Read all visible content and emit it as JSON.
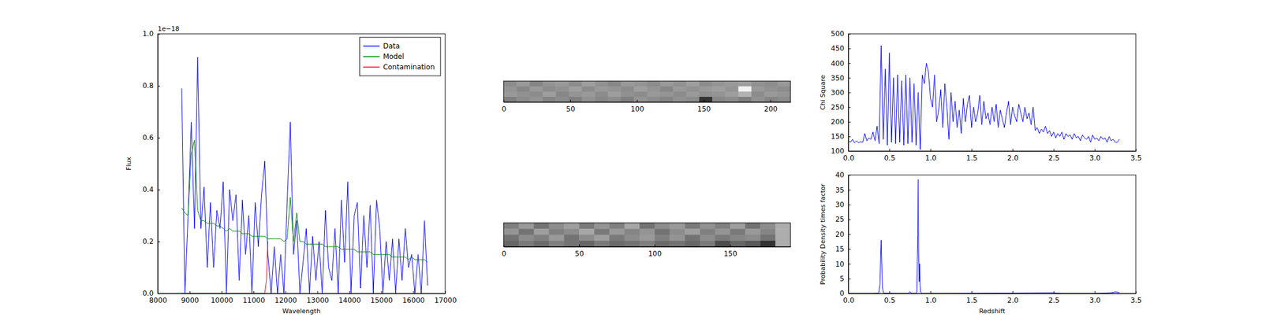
{
  "chart_data": [
    {
      "type": "line",
      "x_label": "Wavelength",
      "y_label": "Flux",
      "y_offset_text": "1e−18",
      "xlim": [
        8000,
        17000
      ],
      "ylim": [
        0,
        1.0
      ],
      "xticks": [
        8000,
        9000,
        10000,
        11000,
        12000,
        13000,
        14000,
        15000,
        16000,
        17000
      ],
      "yticks": [
        {
          "value": 0,
          "label": "0.0"
        },
        {
          "value": 0.2,
          "label": "0.2"
        },
        {
          "value": 0.4,
          "label": "0.4"
        },
        {
          "value": 0.6,
          "label": "0.6"
        },
        {
          "value": 0.8,
          "label": "0.8"
        },
        {
          "value": 1.0,
          "label": "1.0"
        }
      ],
      "legend": "upper right",
      "series": [
        {
          "name": "Data",
          "color": "#0000ff",
          "x": [
            8750,
            8850,
            8950,
            9050,
            9150,
            9250,
            9350,
            9450,
            9550,
            9650,
            9750,
            9850,
            9950,
            10050,
            10150,
            10250,
            10350,
            10450,
            10550,
            10650,
            10750,
            10850,
            10950,
            11050,
            11150,
            11250,
            11350,
            11450,
            11550,
            11650,
            11750,
            11850,
            11950,
            12050,
            12150,
            12250,
            12350,
            12450,
            12550,
            12650,
            12750,
            12850,
            12950,
            13050,
            13150,
            13250,
            13350,
            13450,
            13550,
            13650,
            13750,
            13850,
            13950,
            14050,
            14150,
            14250,
            14350,
            14450,
            14550,
            14650,
            14750,
            14850,
            14950,
            15050,
            15150,
            15250,
            15350,
            15450,
            15550,
            15650,
            15750,
            15850,
            15950,
            16050,
            16150,
            16250,
            16350,
            16450
          ],
          "values": [
            0.79,
            0.0,
            0.3,
            0.66,
            0.25,
            0.91,
            0.25,
            0.41,
            0.1,
            0.35,
            0.1,
            0.32,
            0.25,
            0.43,
            0.0,
            0.4,
            0.28,
            0.38,
            0.05,
            0.36,
            0.15,
            0.3,
            0.0,
            0.35,
            0.18,
            0.38,
            0.51,
            0.15,
            0.0,
            0.18,
            0.0,
            0.15,
            0.0,
            0.35,
            0.66,
            0.15,
            0.28,
            0.0,
            0.12,
            0.25,
            0.0,
            0.22,
            0.05,
            0.2,
            0.0,
            0.32,
            0.1,
            0.05,
            0.25,
            0.0,
            0.36,
            0.12,
            0.43,
            0.0,
            0.3,
            0.35,
            0.02,
            0.3,
            0.1,
            0.34,
            0.0,
            0.36,
            0.25,
            0.0,
            0.2,
            0.05,
            0.21,
            0.0,
            0.21,
            0.05,
            0.25,
            0.1,
            0.15,
            0.0,
            0.15,
            0.0,
            0.28,
            0.03
          ]
        },
        {
          "name": "Model",
          "color": "#008000",
          "x": [
            8750,
            8850,
            8950,
            9050,
            9150,
            9250,
            9350,
            9450,
            9550,
            9650,
            9750,
            9850,
            9950,
            10050,
            10150,
            10250,
            10350,
            10450,
            10550,
            10650,
            10750,
            10850,
            10950,
            11050,
            11150,
            11250,
            11350,
            11450,
            11550,
            11650,
            11750,
            11850,
            11950,
            12050,
            12150,
            12250,
            12350,
            12450,
            12550,
            12650,
            12750,
            12850,
            12950,
            13050,
            13150,
            13250,
            13350,
            13450,
            13550,
            13650,
            13750,
            13850,
            13950,
            14050,
            14150,
            14250,
            14350,
            14450,
            14550,
            14650,
            14750,
            14850,
            14950,
            15050,
            15150,
            15250,
            15350,
            15450,
            15550,
            15650,
            15750,
            15850,
            15950,
            16050,
            16150,
            16250,
            16350,
            16450
          ],
          "values": [
            0.33,
            0.31,
            0.3,
            0.54,
            0.59,
            0.32,
            0.28,
            0.28,
            0.27,
            0.27,
            0.27,
            0.26,
            0.26,
            0.25,
            0.24,
            0.25,
            0.24,
            0.24,
            0.24,
            0.23,
            0.23,
            0.23,
            0.22,
            0.22,
            0.22,
            0.22,
            0.22,
            0.21,
            0.21,
            0.21,
            0.21,
            0.21,
            0.2,
            0.21,
            0.37,
            0.2,
            0.31,
            0.2,
            0.2,
            0.19,
            0.19,
            0.19,
            0.19,
            0.19,
            0.19,
            0.18,
            0.18,
            0.18,
            0.18,
            0.18,
            0.17,
            0.17,
            0.17,
            0.17,
            0.17,
            0.16,
            0.16,
            0.16,
            0.16,
            0.16,
            0.15,
            0.15,
            0.15,
            0.15,
            0.15,
            0.15,
            0.14,
            0.14,
            0.14,
            0.14,
            0.14,
            0.13,
            0.14,
            0.13,
            0.13,
            0.13,
            0.13,
            0.12
          ]
        },
        {
          "name": "Contamination",
          "color": "#ff0000",
          "x": [
            8750,
            11350,
            11400,
            11450
          ],
          "values": [
            0,
            0,
            0.05,
            0.2
          ]
        }
      ]
    },
    {
      "type": "heatmap",
      "xlim": [
        0,
        215
      ],
      "ylim": [
        0,
        16
      ],
      "xticks": [
        0,
        50,
        100,
        150,
        200
      ],
      "tick_labels": "x",
      "zlim": [
        0,
        1
      ],
      "cells": [
        [
          0.55,
          0.6,
          0.52,
          0.58,
          0.6,
          0.55,
          0.62,
          0.57,
          0.53,
          0.6,
          0.58,
          0.55,
          0.6,
          0.57,
          0.62,
          0.55,
          0.58,
          0.6,
          0.62,
          0.57,
          0.55,
          0.6
        ],
        [
          0.58,
          0.53,
          0.6,
          0.55,
          0.57,
          0.62,
          0.55,
          0.6,
          0.58,
          0.55,
          0.62,
          0.58,
          0.53,
          0.6,
          0.57,
          0.6,
          0.62,
          0.58,
          0.95,
          0.6,
          0.57,
          0.55
        ],
        [
          0.6,
          0.57,
          0.55,
          0.62,
          0.53,
          0.58,
          0.6,
          0.55,
          0.62,
          0.57,
          0.55,
          0.6,
          0.58,
          0.55,
          0.6,
          0.57,
          0.58,
          0.62,
          0.7,
          0.55,
          0.6,
          0.58
        ],
        [
          0.5,
          0.55,
          0.58,
          0.52,
          0.55,
          0.5,
          0.57,
          0.53,
          0.55,
          0.5,
          0.58,
          0.55,
          0.52,
          0.57,
          0.55,
          0.2,
          0.53,
          0.55,
          0.5,
          0.57,
          0.52,
          0.55
        ]
      ]
    },
    {
      "type": "heatmap",
      "xlim": [
        0,
        190
      ],
      "ylim": [
        0,
        16
      ],
      "xticks": [
        0,
        50,
        100,
        150
      ],
      "tick_labels": "x",
      "zlim": [
        0,
        1
      ],
      "cells": [
        [
          0.5,
          0.6,
          0.45,
          0.55,
          0.62,
          0.48,
          0.58,
          0.5,
          0.65,
          0.45,
          0.55,
          0.6,
          0.48,
          0.57,
          0.5,
          0.62,
          0.45,
          0.55,
          0.68
        ],
        [
          0.58,
          0.45,
          0.62,
          0.5,
          0.55,
          0.65,
          0.48,
          0.6,
          0.52,
          0.58,
          0.45,
          0.55,
          0.62,
          0.5,
          0.58,
          0.48,
          0.6,
          0.52,
          0.68
        ],
        [
          0.45,
          0.55,
          0.5,
          0.6,
          0.45,
          0.55,
          0.62,
          0.48,
          0.55,
          0.6,
          0.5,
          0.58,
          0.45,
          0.55,
          0.48,
          0.52,
          0.55,
          0.45,
          0.68
        ],
        [
          0.4,
          0.48,
          0.42,
          0.5,
          0.45,
          0.4,
          0.48,
          0.42,
          0.45,
          0.5,
          0.42,
          0.45,
          0.4,
          0.48,
          0.3,
          0.4,
          0.35,
          0.2,
          0.68
        ]
      ]
    },
    {
      "type": "line",
      "y_label": "Chi Square",
      "xlim": [
        0,
        3.5
      ],
      "ylim": [
        100,
        500
      ],
      "xticks": [
        {
          "value": 0,
          "label": "0.0"
        },
        0.5,
        {
          "value": 1,
          "label": "1.0"
        },
        1.5,
        {
          "value": 2,
          "label": "2.0"
        },
        2.5,
        {
          "value": 3,
          "label": "3.0"
        },
        3.5
      ],
      "yticks": [
        100,
        150,
        200,
        250,
        300,
        350,
        400,
        450,
        500
      ],
      "series": [
        {
          "color": "#0000ff",
          "x": [
            0,
            0.025,
            0.05,
            0.075,
            0.1,
            0.125,
            0.15,
            0.175,
            0.2,
            0.225,
            0.25,
            0.275,
            0.3,
            0.325,
            0.35,
            0.375,
            0.4,
            0.425,
            0.45,
            0.475,
            0.5,
            0.525,
            0.55,
            0.575,
            0.6,
            0.625,
            0.65,
            0.675,
            0.7,
            0.725,
            0.75,
            0.775,
            0.8,
            0.825,
            0.85,
            0.875,
            0.9,
            0.925,
            0.95,
            0.975,
            1.0,
            1.025,
            1.05,
            1.075,
            1.1,
            1.125,
            1.15,
            1.175,
            1.2,
            1.225,
            1.25,
            1.275,
            1.3,
            1.325,
            1.35,
            1.375,
            1.4,
            1.425,
            1.45,
            1.475,
            1.5,
            1.525,
            1.55,
            1.575,
            1.6,
            1.625,
            1.65,
            1.675,
            1.7,
            1.725,
            1.75,
            1.775,
            1.8,
            1.825,
            1.85,
            1.875,
            1.9,
            1.925,
            1.95,
            1.975,
            2.0,
            2.025,
            2.05,
            2.075,
            2.1,
            2.125,
            2.15,
            2.175,
            2.2,
            2.225,
            2.25,
            2.275,
            2.3,
            2.325,
            2.35,
            2.375,
            2.4,
            2.425,
            2.45,
            2.475,
            2.5,
            2.525,
            2.55,
            2.575,
            2.6,
            2.625,
            2.65,
            2.675,
            2.7,
            2.725,
            2.75,
            2.775,
            2.8,
            2.825,
            2.85,
            2.875,
            2.9,
            2.925,
            2.95,
            2.975,
            3.0,
            3.025,
            3.05,
            3.075,
            3.1,
            3.125,
            3.15,
            3.175,
            3.2,
            3.225,
            3.25,
            3.275,
            3.3
          ],
          "values": [
            135,
            130,
            140,
            128,
            135,
            128,
            132,
            130,
            160,
            135,
            145,
            140,
            165,
            135,
            185,
            125,
            460,
            140,
            380,
            120,
            435,
            130,
            350,
            125,
            360,
            130,
            340,
            120,
            360,
            125,
            350,
            130,
            330,
            120,
            300,
            105,
            360,
            330,
            400,
            370,
            280,
            250,
            360,
            200,
            240,
            310,
            180,
            330,
            250,
            140,
            300,
            200,
            270,
            180,
            240,
            160,
            280,
            200,
            260,
            290,
            180,
            250,
            200,
            230,
            290,
            190,
            270,
            210,
            230,
            190,
            250,
            200,
            260,
            180,
            240,
            210,
            180,
            230,
            270,
            190,
            250,
            220,
            200,
            260,
            230,
            200,
            250,
            210,
            230,
            190,
            250,
            170,
            180,
            160,
            175,
            165,
            185,
            160,
            170,
            150,
            165,
            145,
            160,
            150,
            165,
            140,
            160,
            150,
            155,
            140,
            160,
            145,
            150,
            135,
            155,
            145,
            140,
            150,
            130,
            155,
            140,
            145,
            135,
            150,
            140,
            145,
            130,
            150,
            135,
            140,
            130,
            130,
            140
          ]
        }
      ]
    },
    {
      "type": "line",
      "x_label": "Redshift",
      "y_label": "Probability Density times factor",
      "xlim": [
        0,
        3.5
      ],
      "ylim": [
        0,
        40
      ],
      "xticks": [
        {
          "value": 0,
          "label": "0.0"
        },
        0.5,
        {
          "value": 1,
          "label": "1.0"
        },
        1.5,
        {
          "value": 2,
          "label": "2.0"
        },
        2.5,
        {
          "value": 3,
          "label": "3.0"
        },
        3.5
      ],
      "yticks": [
        0,
        5,
        10,
        15,
        20,
        25,
        30,
        35,
        40
      ],
      "series": [
        {
          "color": "#0000ff",
          "x": [
            0,
            0.3,
            0.37,
            0.385,
            0.395,
            0.4,
            0.405,
            0.415,
            0.43,
            0.6,
            0.73,
            0.75,
            0.77,
            0.82,
            0.835,
            0.845,
            0.85,
            0.855,
            0.862,
            0.868,
            0.873,
            0.88,
            0.9,
            1.2,
            2.5,
            2.6,
            3.0,
            3.2,
            3.25,
            3.3
          ],
          "values": [
            0,
            0,
            0.1,
            3,
            14,
            18,
            12,
            2,
            0.1,
            0,
            0,
            0.6,
            0,
            0,
            0.5,
            20,
            38.5,
            15,
            4,
            10,
            3,
            0.5,
            0,
            0,
            0.2,
            0,
            0,
            0.2,
            0.5,
            0.3
          ]
        }
      ]
    }
  ]
}
